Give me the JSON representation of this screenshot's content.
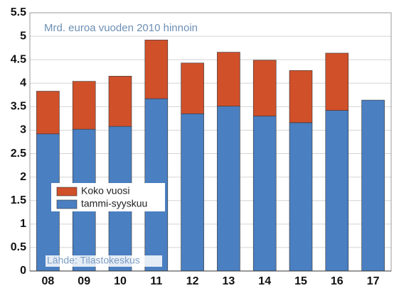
{
  "chart_data": {
    "type": "stacked_bar",
    "subtitle": "Mrd. euroa vuoden 2010 hinnoin",
    "source": "Lähde: Tilastokeskus",
    "categories": [
      "08",
      "09",
      "10",
      "11",
      "12",
      "13",
      "14",
      "15",
      "16",
      "17"
    ],
    "series": [
      {
        "name": "tammi-syyskuu",
        "color": "#4a7fc1",
        "values": [
          2.92,
          3.02,
          3.08,
          3.67,
          3.35,
          3.51,
          3.3,
          3.16,
          3.42,
          3.64
        ]
      },
      {
        "name": "Koko vuosi",
        "color": "#d0502a",
        "values": [
          0.91,
          1.02,
          1.07,
          1.25,
          1.08,
          1.15,
          1.19,
          1.11,
          1.22,
          null
        ]
      }
    ],
    "ylim": [
      0,
      5.5
    ],
    "yticks": [
      0,
      0.5,
      1,
      1.5,
      2,
      2.5,
      3,
      3.5,
      4,
      4.5,
      5,
      5.5
    ],
    "grid": true
  }
}
